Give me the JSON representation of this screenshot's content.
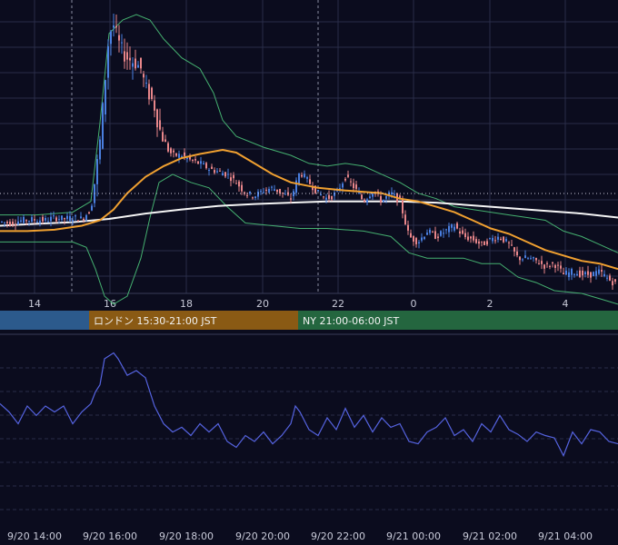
{
  "colors": {
    "background": "#0b0c1e",
    "grid": "#2a2d48",
    "candle_up": "#4a7fe0",
    "candle_down": "#e8868a",
    "ma_short": "#f0a030",
    "ma_long": "#f5f5f5",
    "bollinger": "#45b070",
    "oscillator": "#5563e0",
    "session_tokyo": "#2c5a8c",
    "session_london": "#8a5a14",
    "session_ny": "#24663f"
  },
  "chart_data": [
    {
      "type": "candlestick",
      "x_ticks": [
        "14",
        "16",
        "18",
        "20",
        "22",
        "0",
        "2",
        "4"
      ],
      "y_range_unitless": [
        0,
        1
      ],
      "series": [
        {
          "kind": "moving-average-short"
        },
        {
          "kind": "moving-average-long"
        },
        {
          "kind": "bollinger-bands"
        }
      ],
      "price_path": [
        [
          0,
          0.255
        ],
        [
          10,
          0.25
        ],
        [
          20,
          0.257
        ],
        [
          30,
          0.262
        ],
        [
          40,
          0.262
        ],
        [
          50,
          0.26
        ],
        [
          60,
          0.27
        ],
        [
          70,
          0.265
        ],
        [
          80,
          0.27
        ],
        [
          90,
          0.265
        ],
        [
          100,
          0.3
        ],
        [
          105,
          0.42
        ],
        [
          110,
          0.55
        ],
        [
          115,
          0.75
        ],
        [
          120,
          0.95
        ],
        [
          125,
          0.98
        ],
        [
          130,
          0.92
        ],
        [
          135,
          0.88
        ],
        [
          140,
          0.86
        ],
        [
          145,
          0.85
        ],
        [
          150,
          0.84
        ],
        [
          155,
          0.82
        ],
        [
          160,
          0.75
        ],
        [
          165,
          0.72
        ],
        [
          170,
          0.68
        ],
        [
          175,
          0.6
        ],
        [
          180,
          0.56
        ],
        [
          185,
          0.52
        ],
        [
          190,
          0.5
        ],
        [
          200,
          0.5
        ],
        [
          210,
          0.48
        ],
        [
          220,
          0.47
        ],
        [
          230,
          0.45
        ],
        [
          240,
          0.44
        ],
        [
          250,
          0.43
        ],
        [
          260,
          0.4
        ],
        [
          270,
          0.36
        ],
        [
          280,
          0.35
        ],
        [
          290,
          0.37
        ],
        [
          300,
          0.38
        ],
        [
          310,
          0.36
        ],
        [
          320,
          0.34
        ],
        [
          330,
          0.44
        ],
        [
          340,
          0.4
        ],
        [
          350,
          0.36
        ],
        [
          360,
          0.34
        ],
        [
          370,
          0.36
        ],
        [
          380,
          0.42
        ],
        [
          390,
          0.38
        ],
        [
          400,
          0.33
        ],
        [
          410,
          0.37
        ],
        [
          420,
          0.33
        ],
        [
          430,
          0.36
        ],
        [
          440,
          0.33
        ],
        [
          450,
          0.2
        ],
        [
          460,
          0.18
        ],
        [
          470,
          0.22
        ],
        [
          480,
          0.2
        ],
        [
          490,
          0.22
        ],
        [
          500,
          0.24
        ],
        [
          510,
          0.2
        ],
        [
          520,
          0.19
        ],
        [
          530,
          0.17
        ],
        [
          540,
          0.19
        ],
        [
          550,
          0.2
        ],
        [
          560,
          0.17
        ],
        [
          570,
          0.12
        ],
        [
          580,
          0.12
        ],
        [
          590,
          0.11
        ],
        [
          600,
          0.09
        ],
        [
          610,
          0.1
        ],
        [
          620,
          0.06
        ],
        [
          630,
          0.07
        ],
        [
          640,
          0.06
        ],
        [
          650,
          0.06
        ],
        [
          660,
          0.07
        ],
        [
          670,
          0.04
        ],
        [
          680,
          0.02
        ]
      ],
      "ma_short_path": [
        [
          0,
          0.22
        ],
        [
          30,
          0.22
        ],
        [
          60,
          0.225
        ],
        [
          90,
          0.24
        ],
        [
          110,
          0.26
        ],
        [
          125,
          0.3
        ],
        [
          140,
          0.36
        ],
        [
          160,
          0.42
        ],
        [
          180,
          0.46
        ],
        [
          200,
          0.49
        ],
        [
          220,
          0.505
        ],
        [
          245,
          0.52
        ],
        [
          260,
          0.51
        ],
        [
          280,
          0.47
        ],
        [
          300,
          0.43
        ],
        [
          320,
          0.4
        ],
        [
          350,
          0.38
        ],
        [
          380,
          0.37
        ],
        [
          420,
          0.36
        ],
        [
          440,
          0.34
        ],
        [
          460,
          0.33
        ],
        [
          480,
          0.31
        ],
        [
          500,
          0.29
        ],
        [
          520,
          0.26
        ],
        [
          540,
          0.23
        ],
        [
          560,
          0.21
        ],
        [
          580,
          0.18
        ],
        [
          600,
          0.15
        ],
        [
          620,
          0.13
        ],
        [
          640,
          0.11
        ],
        [
          660,
          0.1
        ],
        [
          680,
          0.08
        ]
      ],
      "ma_long_path": [
        [
          0,
          0.24
        ],
        [
          40,
          0.247
        ],
        [
          80,
          0.253
        ],
        [
          120,
          0.265
        ],
        [
          160,
          0.285
        ],
        [
          200,
          0.3
        ],
        [
          240,
          0.313
        ],
        [
          280,
          0.32
        ],
        [
          320,
          0.325
        ],
        [
          360,
          0.33
        ],
        [
          400,
          0.33
        ],
        [
          440,
          0.33
        ],
        [
          480,
          0.325
        ],
        [
          520,
          0.315
        ],
        [
          560,
          0.305
        ],
        [
          600,
          0.295
        ],
        [
          640,
          0.285
        ],
        [
          680,
          0.27
        ]
      ],
      "bollinger_upper_path": [
        [
          0,
          0.28
        ],
        [
          40,
          0.28
        ],
        [
          80,
          0.29
        ],
        [
          100,
          0.33
        ],
        [
          110,
          0.62
        ],
        [
          120,
          0.95
        ],
        [
          135,
          1.0
        ],
        [
          150,
          1.02
        ],
        [
          165,
          1.0
        ],
        [
          180,
          0.93
        ],
        [
          200,
          0.86
        ],
        [
          220,
          0.82
        ],
        [
          235,
          0.73
        ],
        [
          245,
          0.63
        ],
        [
          260,
          0.57
        ],
        [
          290,
          0.53
        ],
        [
          320,
          0.5
        ],
        [
          340,
          0.47
        ],
        [
          360,
          0.46
        ],
        [
          380,
          0.47
        ],
        [
          400,
          0.46
        ],
        [
          420,
          0.43
        ],
        [
          440,
          0.4
        ],
        [
          460,
          0.36
        ],
        [
          480,
          0.34
        ],
        [
          500,
          0.31
        ],
        [
          520,
          0.3
        ],
        [
          540,
          0.29
        ],
        [
          560,
          0.28
        ],
        [
          580,
          0.27
        ],
        [
          600,
          0.26
        ],
        [
          620,
          0.22
        ],
        [
          640,
          0.2
        ],
        [
          660,
          0.17
        ],
        [
          680,
          0.14
        ]
      ],
      "bollinger_lower_path": [
        [
          0,
          0.18
        ],
        [
          40,
          0.18
        ],
        [
          80,
          0.18
        ],
        [
          95,
          0.16
        ],
        [
          105,
          0.08
        ],
        [
          115,
          -0.02
        ],
        [
          125,
          -0.05
        ],
        [
          140,
          -0.02
        ],
        [
          155,
          0.12
        ],
        [
          165,
          0.27
        ],
        [
          175,
          0.4
        ],
        [
          190,
          0.43
        ],
        [
          210,
          0.4
        ],
        [
          230,
          0.38
        ],
        [
          250,
          0.31
        ],
        [
          270,
          0.25
        ],
        [
          300,
          0.24
        ],
        [
          330,
          0.23
        ],
        [
          360,
          0.23
        ],
        [
          400,
          0.22
        ],
        [
          430,
          0.2
        ],
        [
          450,
          0.14
        ],
        [
          470,
          0.12
        ],
        [
          490,
          0.12
        ],
        [
          510,
          0.12
        ],
        [
          530,
          0.1
        ],
        [
          550,
          0.1
        ],
        [
          570,
          0.05
        ],
        [
          590,
          0.03
        ],
        [
          610,
          0.0
        ],
        [
          640,
          -0.01
        ],
        [
          660,
          -0.03
        ],
        [
          680,
          -0.05
        ]
      ]
    },
    {
      "type": "line",
      "x_ticks": [
        "9/20 14:00",
        "9/20 16:00",
        "9/20 18:00",
        "9/20 20:00",
        "9/20 22:00",
        "9/21 00:00",
        "9/21 02:00",
        "9/21 04:00"
      ],
      "series": [
        {
          "kind": "oscillator"
        }
      ],
      "osc_path": [
        [
          0,
          0.62
        ],
        [
          10,
          0.55
        ],
        [
          20,
          0.45
        ],
        [
          30,
          0.6
        ],
        [
          40,
          0.52
        ],
        [
          50,
          0.6
        ],
        [
          60,
          0.55
        ],
        [
          70,
          0.6
        ],
        [
          80,
          0.45
        ],
        [
          90,
          0.55
        ],
        [
          100,
          0.62
        ],
        [
          105,
          0.72
        ],
        [
          110,
          0.78
        ],
        [
          115,
          1.0
        ],
        [
          125,
          1.05
        ],
        [
          130,
          1.0
        ],
        [
          140,
          0.86
        ],
        [
          150,
          0.9
        ],
        [
          160,
          0.84
        ],
        [
          170,
          0.6
        ],
        [
          180,
          0.45
        ],
        [
          190,
          0.38
        ],
        [
          200,
          0.42
        ],
        [
          210,
          0.35
        ],
        [
          220,
          0.45
        ],
        [
          230,
          0.38
        ],
        [
          240,
          0.45
        ],
        [
          250,
          0.3
        ],
        [
          260,
          0.25
        ],
        [
          270,
          0.35
        ],
        [
          280,
          0.3
        ],
        [
          290,
          0.38
        ],
        [
          300,
          0.28
        ],
        [
          310,
          0.35
        ],
        [
          320,
          0.45
        ],
        [
          325,
          0.6
        ],
        [
          330,
          0.55
        ],
        [
          340,
          0.4
        ],
        [
          350,
          0.35
        ],
        [
          360,
          0.5
        ],
        [
          370,
          0.4
        ],
        [
          380,
          0.58
        ],
        [
          390,
          0.42
        ],
        [
          400,
          0.52
        ],
        [
          410,
          0.38
        ],
        [
          420,
          0.5
        ],
        [
          430,
          0.42
        ],
        [
          440,
          0.45
        ],
        [
          450,
          0.3
        ],
        [
          460,
          0.28
        ],
        [
          470,
          0.38
        ],
        [
          480,
          0.42
        ],
        [
          490,
          0.5
        ],
        [
          500,
          0.35
        ],
        [
          510,
          0.4
        ],
        [
          520,
          0.3
        ],
        [
          530,
          0.45
        ],
        [
          540,
          0.38
        ],
        [
          550,
          0.52
        ],
        [
          560,
          0.4
        ],
        [
          570,
          0.36
        ],
        [
          580,
          0.3
        ],
        [
          590,
          0.38
        ],
        [
          600,
          0.35
        ],
        [
          610,
          0.33
        ],
        [
          620,
          0.18
        ],
        [
          630,
          0.38
        ],
        [
          640,
          0.28
        ],
        [
          650,
          0.4
        ],
        [
          660,
          0.38
        ],
        [
          670,
          0.3
        ],
        [
          680,
          0.28
        ]
      ]
    }
  ],
  "sessions": [
    {
      "label": "",
      "color_key": "session_tokyo"
    },
    {
      "label": "ロンドン 15:30-21:00 JST",
      "color_key": "session_london"
    },
    {
      "label": "NY 21:00-06:00 JST",
      "color_key": "session_ny"
    }
  ]
}
